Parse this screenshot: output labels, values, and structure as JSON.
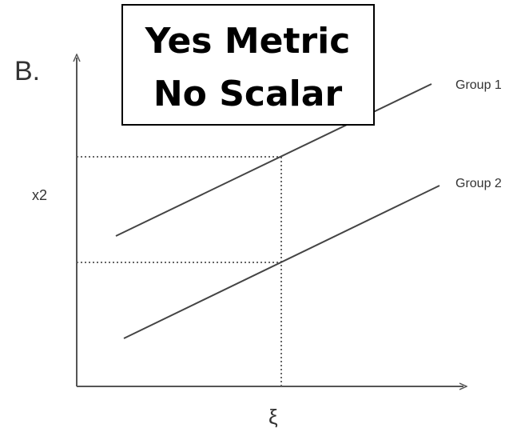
{
  "panel_label": "B.",
  "box": {
    "lines": [
      "Yes Metric",
      "No Scalar"
    ]
  },
  "y_axis_label": "x2",
  "x_axis_label": "ξ",
  "groups": [
    "Group 1",
    "Group 2"
  ]
}
